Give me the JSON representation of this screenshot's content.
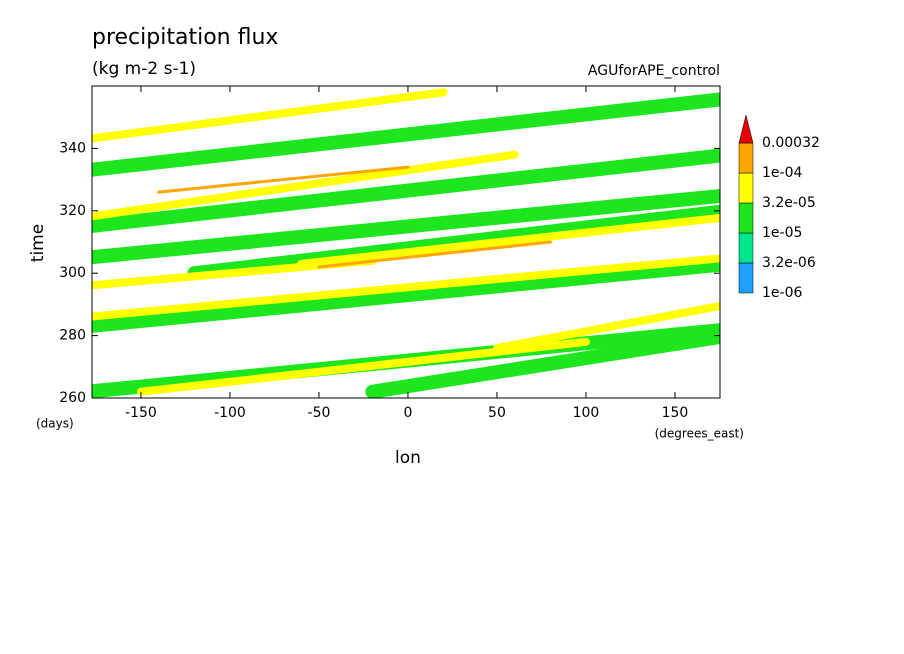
{
  "chart_data": {
    "type": "hovmoller",
    "title": "precipitation flux",
    "subtitle": "(kg m-2 s-1)",
    "annotation": "AGUforAPE_control",
    "xlabel": "lon",
    "ylabel": "time",
    "xunit": "(degrees_east)",
    "yunit": "(days)",
    "xlim": [
      -177.5,
      175.3
    ],
    "ylim": [
      260,
      360
    ],
    "xticks": [
      -150,
      -100,
      -50,
      0,
      50,
      100,
      150
    ],
    "yticks": [
      260,
      280,
      300,
      320,
      340
    ],
    "colorbar": {
      "levels": [
        {
          "value": 1e-06,
          "label": "1e-06"
        },
        {
          "value": 3.2e-06,
          "label": "3.2e-06"
        },
        {
          "value": 1e-05,
          "label": "1e-05"
        },
        {
          "value": 3.2e-05,
          "label": "3.2e-05"
        },
        {
          "value": 0.0001,
          "label": "1e-04"
        },
        0.00032
      ],
      "colors": [
        "#1ea0ff",
        "#00e68c",
        "#1ee61e",
        "#ffff00",
        "#ffa500",
        "#e60000"
      ]
    },
    "streaks": [
      {
        "x": [
          -180,
          180
        ],
        "y": [
          262,
          282
        ],
        "level": 1e-05
      },
      {
        "x": [
          -180,
          180
        ],
        "y": [
          283,
          303
        ],
        "level": 1e-05
      },
      {
        "x": [
          -120,
          180
        ],
        "y": [
          300,
          320
        ],
        "level": 1e-05
      },
      {
        "x": [
          -180,
          180
        ],
        "y": [
          305,
          325
        ],
        "level": 1e-05
      },
      {
        "x": [
          -180,
          180
        ],
        "y": [
          315,
          338
        ],
        "level": 1e-05
      },
      {
        "x": [
          -180,
          180
        ],
        "y": [
          333,
          356
        ],
        "level": 1e-05
      },
      {
        "x": [
          -20,
          180
        ],
        "y": [
          262,
          280
        ],
        "level": 1e-05
      },
      {
        "x": [
          -150,
          100
        ],
        "y": [
          262,
          278
        ],
        "level": 3.2e-05
      },
      {
        "x": [
          50,
          180
        ],
        "y": [
          276,
          290
        ],
        "level": 3.2e-05
      },
      {
        "x": [
          -180,
          180
        ],
        "y": [
          286,
          305
        ],
        "level": 3.2e-05
      },
      {
        "x": [
          -180,
          -20
        ],
        "y": [
          296,
          304
        ],
        "level": 3.2e-05
      },
      {
        "x": [
          -60,
          180
        ],
        "y": [
          303,
          318
        ],
        "level": 3.2e-05
      },
      {
        "x": [
          -180,
          60
        ],
        "y": [
          318,
          338
        ],
        "level": 3.2e-05
      },
      {
        "x": [
          -180,
          20
        ],
        "y": [
          343,
          358
        ],
        "level": 3.2e-05
      },
      {
        "x": [
          -140,
          0
        ],
        "y": [
          326,
          334
        ],
        "level": 0.0001
      },
      {
        "x": [
          -50,
          80
        ],
        "y": [
          302,
          310
        ],
        "level": 0.0001
      }
    ]
  }
}
